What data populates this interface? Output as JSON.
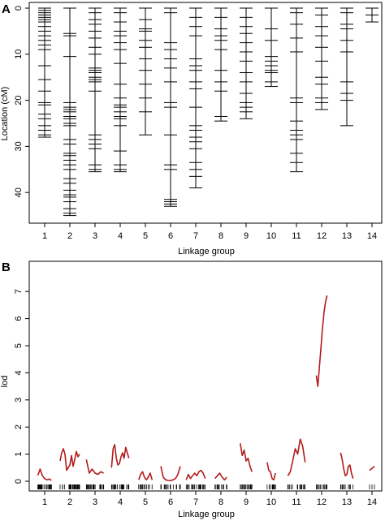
{
  "chart_data": [
    {
      "type": "genetic-linkage-map",
      "panel_label": "A",
      "xlabel": "Linkage group",
      "ylabel": "Location (cM)",
      "ylim": [
        0,
        47
      ],
      "y_reversed": true,
      "yticks": [
        0,
        10,
        20,
        30,
        40
      ],
      "groups": [
        {
          "name": "1",
          "length": 28.0,
          "markers": [
            0.0,
            0.5,
            1.0,
            1.5,
            2.0,
            2.5,
            3.0,
            4.0,
            5.0,
            6.0,
            7.0,
            8.0,
            9.0,
            12.5,
            15.5,
            18.0,
            20.5,
            21.0,
            23.0,
            24.0,
            25.5,
            26.5,
            27.5,
            28.0
          ]
        },
        {
          "name": "2",
          "length": 45.0,
          "markers": [
            0.0,
            5.5,
            6.0,
            10.5,
            20.5,
            21.5,
            22.0,
            22.5,
            23.5,
            24.0,
            25.0,
            25.5,
            28.5,
            29.5,
            31.5,
            32.0,
            33.0,
            34.0,
            35.0,
            37.0,
            38.0,
            39.5,
            40.5,
            41.0,
            42.0,
            43.5,
            44.5,
            45.0
          ]
        },
        {
          "name": "3",
          "length": 35.5,
          "markers": [
            0.0,
            1.0,
            2.5,
            3.5,
            5.0,
            6.5,
            8.5,
            10.0,
            13.0,
            13.5,
            14.0,
            15.0,
            15.5,
            16.0,
            18.0,
            27.5,
            28.5,
            29.5,
            30.5,
            34.0,
            35.0,
            35.5
          ]
        },
        {
          "name": "4",
          "length": 35.5,
          "markers": [
            0.0,
            1.0,
            3.0,
            5.0,
            6.0,
            7.5,
            9.0,
            12.0,
            16.5,
            19.5,
            21.0,
            21.5,
            22.5,
            23.5,
            24.0,
            25.5,
            31.0,
            34.0,
            35.0,
            35.5
          ]
        },
        {
          "name": "5",
          "length": 27.5,
          "markers": [
            0.0,
            2.5,
            4.5,
            5.0,
            7.0,
            8.5,
            11.0,
            13.5,
            16.5,
            19.5,
            22.5,
            27.5
          ]
        },
        {
          "name": "6",
          "length": 43.0,
          "markers": [
            0.0,
            1.0,
            7.5,
            9.0,
            11.0,
            13.0,
            16.0,
            20.5,
            21.5,
            27.5,
            34.0,
            35.0,
            41.5,
            42.0,
            42.5,
            43.0
          ]
        },
        {
          "name": "7",
          "length": 39.0,
          "markers": [
            0.0,
            2.0,
            4.0,
            6.0,
            11.0,
            12.5,
            13.5,
            16.0,
            17.5,
            21.5,
            25.5,
            26.5,
            28.0,
            29.0,
            30.5,
            33.5,
            35.0,
            36.5,
            39.0
          ]
        },
        {
          "name": "8",
          "length": 24.5,
          "markers": [
            0.0,
            2.0,
            4.5,
            6.0,
            7.0,
            9.0,
            13.5,
            16.0,
            18.0,
            23.5,
            24.5
          ]
        },
        {
          "name": "9",
          "length": 24.0,
          "markers": [
            0.0,
            2.0,
            4.0,
            5.5,
            7.5,
            9.5,
            11.5,
            14.0,
            16.0,
            18.5,
            20.5,
            21.5,
            22.5,
            24.0
          ]
        },
        {
          "name": "10",
          "length": 17.0,
          "markers": [
            0.0,
            4.5,
            7.0,
            10.5,
            11.5,
            12.5,
            13.5,
            14.0,
            16.0,
            17.0
          ]
        },
        {
          "name": "11",
          "length": 35.5,
          "markers": [
            0.0,
            1.0,
            3.5,
            6.5,
            9.5,
            19.5,
            20.5,
            24.5,
            26.5,
            27.5,
            28.5,
            31.5,
            33.5,
            35.5
          ]
        },
        {
          "name": "12",
          "length": 22.0,
          "markers": [
            0.0,
            1.5,
            4.0,
            6.0,
            8.5,
            11.5,
            15.0,
            16.5,
            19.5,
            20.5,
            22.0
          ]
        },
        {
          "name": "13",
          "length": 25.5,
          "markers": [
            0.0,
            1.0,
            3.5,
            4.5,
            7.0,
            9.5,
            16.0,
            18.5,
            20.0,
            25.5
          ]
        },
        {
          "name": "14",
          "length": 3.0,
          "markers": [
            0.0,
            1.5,
            3.0
          ]
        }
      ]
    },
    {
      "type": "line",
      "panel_label": "B",
      "xlabel": "Linkage group",
      "ylabel": "lod",
      "ylim": [
        0,
        7
      ],
      "yticks": [
        0,
        1,
        2,
        3,
        4,
        5,
        6,
        7
      ],
      "line_color": "#b31b1b",
      "groups": [
        {
          "name": "1",
          "lod": [
            0.22,
            0.45,
            0.2,
            0.1,
            0.05,
            0.08,
            0.03
          ]
        },
        {
          "name": "2",
          "lod": [
            0.75,
            1.05,
            1.2,
            1.0,
            0.4,
            0.5,
            0.6,
            0.95,
            0.55,
            0.8,
            1.1,
            0.9,
            1.0
          ]
        },
        {
          "name": "3",
          "lod": [
            0.8,
            0.3,
            0.45,
            0.3,
            0.25,
            0.35,
            0.3
          ]
        },
        {
          "name": "4",
          "lod": [
            0.5,
            1.2,
            1.35,
            0.85,
            0.6,
            0.65,
            0.9,
            1.05,
            0.85,
            1.25,
            1.05,
            0.85
          ]
        },
        {
          "name": "5",
          "lod": [
            0.05,
            0.25,
            0.35,
            0.15,
            0.05,
            0.15,
            0.3,
            0.05
          ]
        },
        {
          "name": "6",
          "lod": [
            0.55,
            0.15,
            0.05,
            0.03,
            0.02,
            0.05,
            0.1,
            0.25,
            0.55
          ]
        },
        {
          "name": "7",
          "lod": [
            0.05,
            0.25,
            0.1,
            0.2,
            0.3,
            0.2,
            0.35,
            0.4,
            0.3,
            0.1
          ]
        },
        {
          "name": "8",
          "lod": [
            0.1,
            0.2,
            0.3,
            0.15,
            0.05,
            0.15
          ]
        },
        {
          "name": "9",
          "lod": [
            1.4,
            0.95,
            1.15,
            0.75,
            0.85,
            0.55,
            0.35
          ]
        },
        {
          "name": "10",
          "lod": [
            0.7,
            0.4,
            0.35,
            0.1,
            0.05,
            0.3
          ]
        },
        {
          "name": "11",
          "lod": [
            0.2,
            0.35,
            0.75,
            1.2,
            1.0,
            1.55,
            1.3,
            0.7
          ]
        },
        {
          "name": "12",
          "lod": [
            3.9,
            3.5,
            4.2,
            4.9,
            5.6,
            6.2,
            6.6,
            6.85
          ]
        },
        {
          "name": "13",
          "lod": [
            1.05,
            0.8,
            0.45,
            0.2,
            0.25,
            0.55,
            0.6,
            0.3,
            0.1
          ]
        },
        {
          "name": "14",
          "lod": [
            0.4,
            0.55
          ]
        }
      ]
    }
  ]
}
